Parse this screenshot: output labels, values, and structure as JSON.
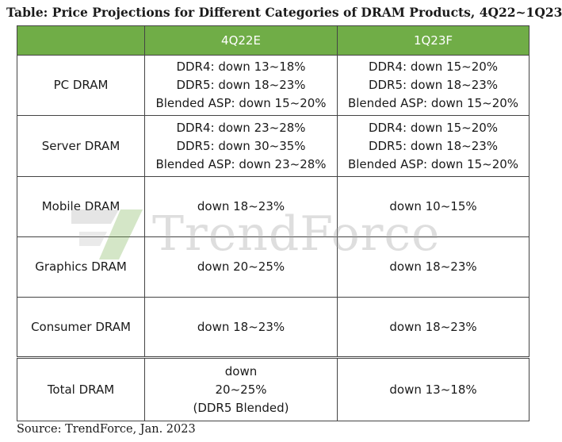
{
  "title": "Table: Price Projections for Different Categories of DRAM Products, 4Q22~1Q23",
  "columns": [
    "4Q22E",
    "1Q23F"
  ],
  "rows": [
    {
      "category": "PC DRAM",
      "q4": [
        "DDR4: down 13~18%",
        "DDR5: down 18~23%",
        "Blended ASP: down 15~20%"
      ],
      "q1": [
        "DDR4: down 15~20%",
        "DDR5: down 18~23%",
        "Blended ASP: down 15~20%"
      ]
    },
    {
      "category": "Server DRAM",
      "q4": [
        "DDR4: down 23~28%",
        "DDR5: down 30~35%",
        "Blended ASP: down 23~28%"
      ],
      "q1": [
        "DDR4: down 15~20%",
        "DDR5: down 18~23%",
        "Blended ASP: down 15~20%"
      ]
    },
    {
      "category": "Mobile DRAM",
      "q4": [
        "down 18~23%"
      ],
      "q1": [
        "down 10~15%"
      ]
    },
    {
      "category": "Graphics DRAM",
      "q4": [
        "down 20~25%"
      ],
      "q1": [
        "down 18~23%"
      ]
    },
    {
      "category": "Consumer DRAM",
      "q4": [
        "down 18~23%"
      ],
      "q1": [
        "down 18~23%"
      ]
    },
    {
      "category": "Total DRAM",
      "q4": [
        "down",
        "20~25%",
        "(DDR5 Blended)"
      ],
      "q1": [
        "down 13~18%"
      ]
    }
  ],
  "watermark": "TrendForce",
  "source": "Source: TrendForce, Jan. 2023",
  "colors": {
    "header_bg": "#70ad47",
    "header_text": "#ffffff"
  }
}
